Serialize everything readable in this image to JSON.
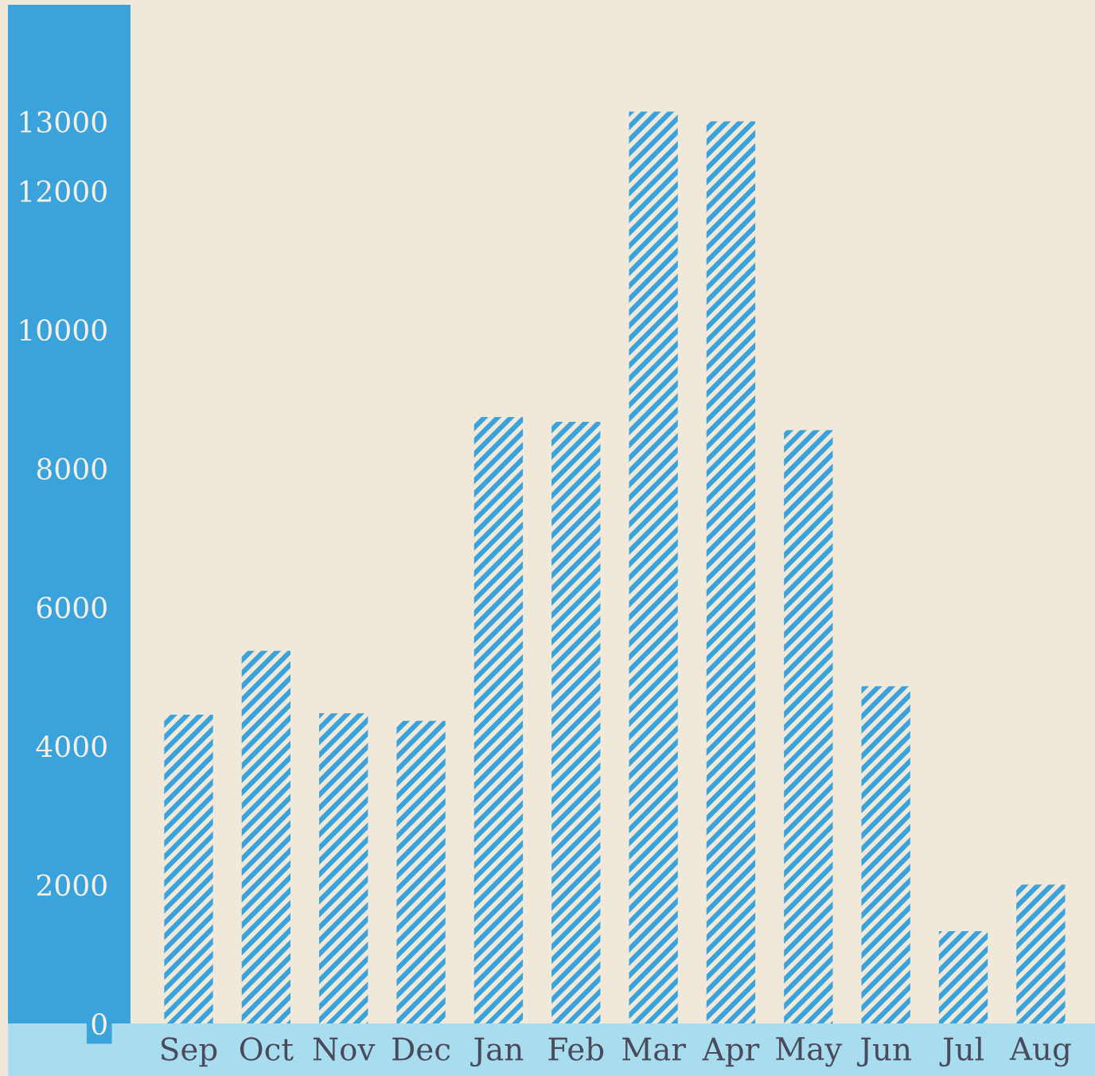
{
  "chart_data": {
    "type": "bar",
    "categories": [
      "Sep",
      "Oct",
      "Nov",
      "Dec",
      "Jan",
      "Feb",
      "Mar",
      "Apr",
      "May",
      "Jun",
      "Jul",
      "Aug"
    ],
    "values": [
      4450,
      5370,
      4470,
      4360,
      8740,
      8670,
      13140,
      13000,
      8550,
      4860,
      1330,
      2000
    ],
    "color": "#3aa3dc",
    "ylim": [
      0,
      14680
    ],
    "yticks": [
      0,
      2000,
      4000,
      6000,
      8000,
      10000,
      12000,
      13000
    ],
    "grid": false
  }
}
